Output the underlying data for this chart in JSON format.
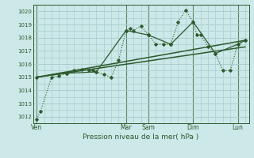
{
  "bg_color": "#cce8e8",
  "grid_color": "#aacece",
  "line_color": "#2d5a2d",
  "title": "Pression niveau de la mer( hPa )",
  "ylim": [
    1011.5,
    1020.5
  ],
  "yticks": [
    1012,
    1013,
    1014,
    1015,
    1016,
    1017,
    1018,
    1019,
    1020
  ],
  "day_labels": [
    "Ven",
    "Mar",
    "Sam",
    "Dim",
    "Lun"
  ],
  "day_positions": [
    0,
    12,
    15,
    21,
    27
  ],
  "xmin": -0.5,
  "xmax": 28.5,
  "series1_x": [
    0,
    0.5,
    2,
    3,
    4,
    5,
    6,
    7,
    7.5,
    8,
    9,
    10,
    11,
    12,
    12.5,
    13,
    14,
    15,
    16,
    17,
    18,
    19,
    20,
    21,
    21.5,
    22,
    23,
    24,
    25,
    26,
    27,
    28
  ],
  "series1_y": [
    1011.8,
    1012.4,
    1015.0,
    1015.1,
    1015.3,
    1015.5,
    1015.6,
    1015.55,
    1015.5,
    1015.4,
    1015.2,
    1015.0,
    1016.3,
    1018.55,
    1018.7,
    1018.55,
    1018.9,
    1018.2,
    1017.5,
    1017.5,
    1017.5,
    1019.2,
    1020.1,
    1019.2,
    1018.2,
    1018.2,
    1017.3,
    1016.8,
    1015.5,
    1015.5,
    1017.5,
    1017.8
  ],
  "series2_x": [
    0,
    4,
    8,
    12,
    15,
    18,
    21,
    24,
    27,
    28
  ],
  "series2_y": [
    1015.0,
    1015.3,
    1015.4,
    1018.55,
    1018.2,
    1017.5,
    1019.2,
    1016.8,
    1017.5,
    1017.8
  ],
  "trend1_x": [
    0,
    28
  ],
  "trend1_y": [
    1015.0,
    1017.8
  ],
  "trend2_x": [
    0,
    28
  ],
  "trend2_y": [
    1015.0,
    1017.3
  ]
}
